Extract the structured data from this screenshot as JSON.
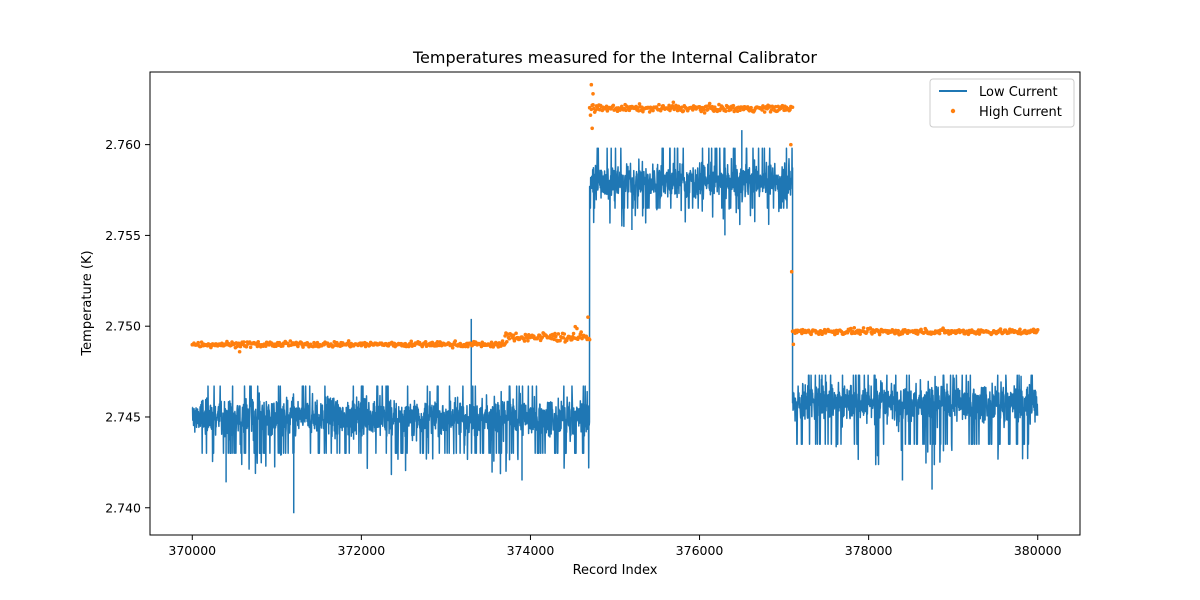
{
  "chart_data": {
    "type": "line",
    "title": "Temperatures measured for the Internal Calibrator",
    "xlabel": "Record Index",
    "ylabel": "Temperature (K)",
    "xlim": [
      369500,
      380500
    ],
    "ylim": [
      2.7385,
      2.764
    ],
    "xticks": [
      370000,
      372000,
      374000,
      376000,
      378000,
      380000
    ],
    "xtick_labels": [
      "370000",
      "372000",
      "374000",
      "376000",
      "378000",
      "380000"
    ],
    "yticks": [
      2.74,
      2.745,
      2.75,
      2.755,
      2.76
    ],
    "ytick_labels": [
      "2.740",
      "2.745",
      "2.750",
      "2.755",
      "2.760"
    ],
    "grid": false,
    "legend_position": "top-right",
    "series": [
      {
        "name": "Low Current",
        "kind": "line",
        "color": "#1f77b4",
        "segments": [
          {
            "x_start": 370000,
            "x_end": 374700,
            "center": 2.745,
            "low": 2.743,
            "high": 2.7467
          },
          {
            "x_start": 374700,
            "x_end": 377100,
            "center": 2.758,
            "low": 2.7565,
            "high": 2.7598
          },
          {
            "x_start": 377100,
            "x_end": 380000,
            "center": 2.7458,
            "low": 2.7435,
            "high": 2.7473
          }
        ],
        "outliers": [
          {
            "x": 371200,
            "y": 2.7397
          },
          {
            "x": 370400,
            "y": 2.7414
          },
          {
            "x": 373300,
            "y": 2.7504
          },
          {
            "x": 373900,
            "y": 2.7415
          },
          {
            "x": 375200,
            "y": 2.7553
          },
          {
            "x": 376300,
            "y": 2.755
          },
          {
            "x": 376500,
            "y": 2.7608
          },
          {
            "x": 378750,
            "y": 2.741
          },
          {
            "x": 378400,
            "y": 2.7415
          }
        ]
      },
      {
        "name": "High Current",
        "kind": "scatter",
        "color": "#ff7f0e",
        "segments": [
          {
            "x_start": 370000,
            "x_end": 373700,
            "center": 2.749,
            "spread": 0.00015
          },
          {
            "x_start": 373700,
            "x_end": 374700,
            "center": 2.7494,
            "spread": 0.00025
          },
          {
            "x_start": 374700,
            "x_end": 377100,
            "center": 2.762,
            "spread": 0.00018
          },
          {
            "x_start": 377100,
            "x_end": 380000,
            "center": 2.7497,
            "spread": 0.00015
          }
        ],
        "outliers": [
          {
            "x": 374720,
            "y": 2.7633
          },
          {
            "x": 374730,
            "y": 2.7609
          },
          {
            "x": 374740,
            "y": 2.7628
          },
          {
            "x": 377080,
            "y": 2.76
          },
          {
            "x": 377090,
            "y": 2.753
          },
          {
            "x": 377110,
            "y": 2.749
          },
          {
            "x": 374680,
            "y": 2.7505
          }
        ]
      }
    ]
  }
}
